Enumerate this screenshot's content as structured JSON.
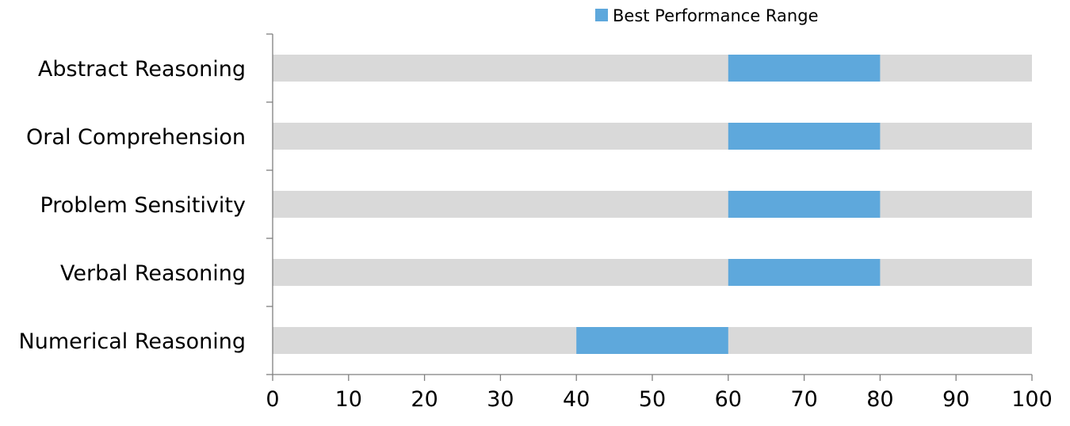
{
  "chart_data": {
    "type": "bar",
    "orientation": "horizontal",
    "categories": [
      "Abstract Reasoning",
      "Oral Comprehension",
      "Problem Sensitivity",
      "Verbal Reasoning",
      "Numerical Reasoning"
    ],
    "series": [
      {
        "name": "Best Performance Range",
        "color": "#5ea8dc",
        "ranges": [
          [
            60,
            80
          ],
          [
            60,
            80
          ],
          [
            60,
            80
          ],
          [
            60,
            80
          ],
          [
            40,
            60
          ]
        ]
      }
    ],
    "background_range": [
      0,
      100
    ],
    "background_color": "#d9d9d9",
    "xlim": [
      0,
      100
    ],
    "x_ticks": [
      0,
      10,
      20,
      30,
      40,
      50,
      60,
      70,
      80,
      90,
      100
    ],
    "legend_position": "top-right",
    "grid": false
  }
}
